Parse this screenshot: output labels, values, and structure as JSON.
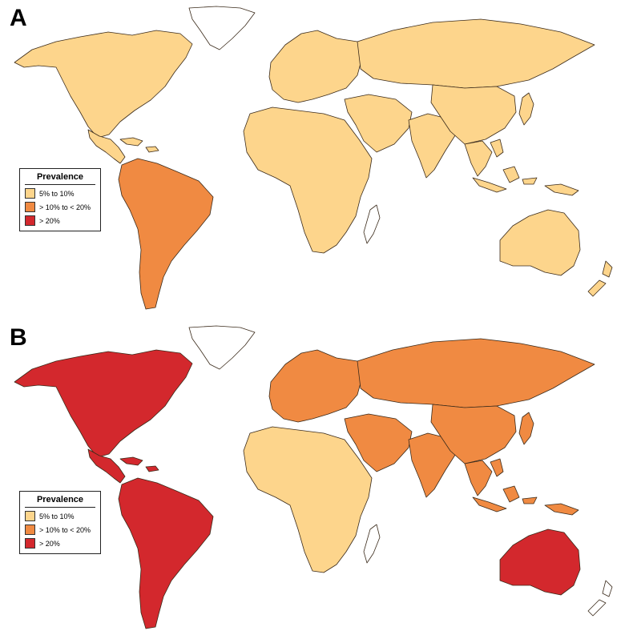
{
  "colors": {
    "low": "#fdd58c",
    "mid": "#f08a42",
    "high": "#d3282d",
    "none": "#ffffff",
    "ocean": "#ffffff"
  },
  "panels": [
    {
      "label": "A",
      "legend": {
        "title": "Prevalence",
        "items": [
          {
            "label": "5% to 10%",
            "level": "low"
          },
          {
            "label": "> 10% to < 20%",
            "level": "mid"
          },
          {
            "label": "> 20%",
            "level": "high"
          }
        ]
      },
      "regions": {
        "north_america": "low",
        "greenland": "none",
        "central_america": "low",
        "caribbean": "low",
        "south_america": "mid",
        "europe": "low",
        "russia_north_asia": "low",
        "middle_east": "low",
        "africa": "low",
        "madagascar": "none",
        "south_asia": "low",
        "east_asia": "low",
        "japan": "low",
        "southeast_asia": "low",
        "indonesia": "low",
        "australia": "low",
        "new_zealand": "low"
      }
    },
    {
      "label": "B",
      "legend": {
        "title": "Prevalence",
        "items": [
          {
            "label": "5% to 10%",
            "level": "low"
          },
          {
            "label": "> 10% to < 20%",
            "level": "mid"
          },
          {
            "label": "> 20%",
            "level": "high"
          }
        ]
      },
      "regions": {
        "north_america": "high",
        "greenland": "none",
        "central_america": "high",
        "caribbean": "high",
        "south_america": "high",
        "europe": "mid",
        "russia_north_asia": "mid",
        "middle_east": "mid",
        "africa": "low",
        "madagascar": "none",
        "south_asia": "mid",
        "east_asia": "mid",
        "japan": "mid",
        "southeast_asia": "mid",
        "indonesia": "mid",
        "australia": "high",
        "new_zealand": "none"
      }
    }
  ]
}
